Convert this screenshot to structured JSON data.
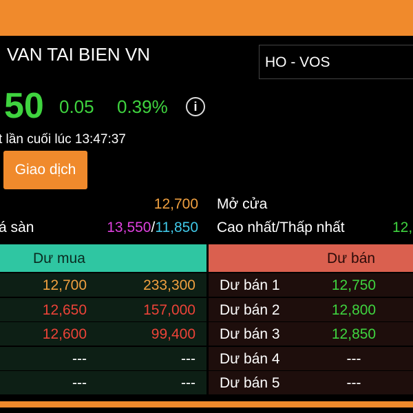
{
  "header": {
    "company": "VAN TAI BIEN VN",
    "exchange_symbol": "HO - VOS",
    "price": "50",
    "change": "0.05",
    "change_percent": "0.39%",
    "info_icon": "i",
    "updated": "t lần cuối lúc 13:47:37",
    "trade_button": "Giao dịch"
  },
  "stats": {
    "open_value": "12,700",
    "open_label": "Mở cửa",
    "ceiling_floor_label": "á sàn",
    "ceiling": "13,550",
    "separator": "/",
    "floor": "11,850",
    "high_low_label": "Cao nhất/Thấp nhất",
    "high_low_value": "12,"
  },
  "order_book": {
    "buy_header": "Dư mua",
    "sell_header": "Dư bán",
    "rows": [
      {
        "buy_price": "12,700",
        "buy_volume": "233,300",
        "sell_label": "Dư bán 1",
        "sell_price": "12,750"
      },
      {
        "buy_price": "12,650",
        "buy_volume": "157,000",
        "sell_label": "Dư bán 2",
        "sell_price": "12,800"
      },
      {
        "buy_price": "12,600",
        "buy_volume": "99,400",
        "sell_label": "Dư bán 3",
        "sell_price": "12,850"
      },
      {
        "buy_price": "---",
        "buy_volume": "---",
        "sell_label": "Dư bán 4",
        "sell_price": "---"
      },
      {
        "buy_price": "---",
        "buy_volume": "---",
        "sell_label": "Dư bán 5",
        "sell_price": "---"
      }
    ]
  }
}
